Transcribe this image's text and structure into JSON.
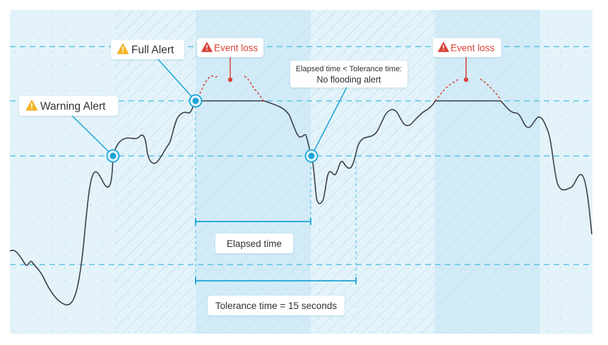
{
  "labels": {
    "warning_alert": "Warning Alert",
    "full_alert": "Full Alert",
    "event_loss_1": "Event loss",
    "event_loss_2": "Event loss",
    "flood_line1": "Elapsed time < Tolerance time:",
    "flood_line2": "No flooding alert",
    "elapsed_time": "Elapsed time",
    "tolerance_time": "Tolerance time = 15 seconds"
  },
  "icons": {
    "warning": "warning-triangle-icon",
    "error": "error-triangle-icon"
  },
  "colors": {
    "background": "#e4f3fa",
    "background_band": "#d2ebf7",
    "grid_dot": "#b4d8ea",
    "threshold_line": "#43bce0",
    "signal_line": "#3d4047",
    "marker": "#1ba5d6",
    "warning_yellow": "#f2b324",
    "event_red": "#d8443a",
    "bracket": "#1ba5d6"
  }
}
